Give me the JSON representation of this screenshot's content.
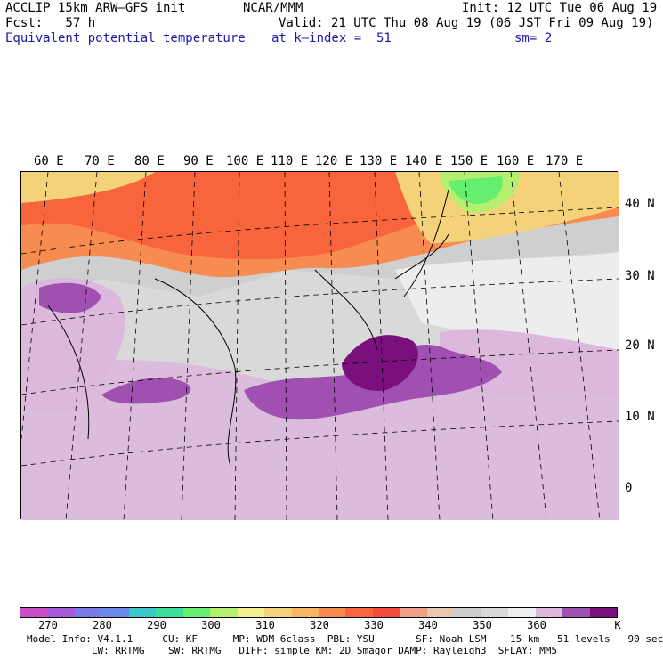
{
  "header": {
    "model": "ACCLIP 15km ARW–GFS init",
    "center": "NCAR/MMM",
    "init": "Init: 12 UTC Tue 06 Aug 19",
    "fcst": "Fcst:   57 h",
    "valid": "Valid: 21 UTC Thu 08 Aug 19 (06 JST Fri 09 Aug 19)",
    "field": "Equivalent potential temperature",
    "level": "at k–index =  51",
    "smooth": "sm= 2"
  },
  "map": {
    "lon_labels": [
      "60 E",
      "70 E",
      "80 E",
      "90 E",
      "100 E",
      "110 E",
      "120 E",
      "130 E",
      "140 E",
      "150 E",
      "160 E",
      "170 E"
    ],
    "lat_labels": [
      "40 N",
      "30 N",
      "20 N",
      "10 N",
      "0"
    ]
  },
  "colorbar": {
    "colors": [
      "#c84fc8",
      "#a45ad8",
      "#7a7ae8",
      "#6a88ea",
      "#3cc8c8",
      "#3ce09a",
      "#66ee6e",
      "#b4f06e",
      "#f0f08c",
      "#f4d27a",
      "#f8b464",
      "#f88c50",
      "#f8643c",
      "#f44c3a",
      "#f0a08a",
      "#e6c8b0",
      "#cccccc",
      "#d9d9d9",
      "#efefef",
      "#dcb8dc",
      "#a050b0",
      "#7a107e"
    ],
    "ticks": [
      "270",
      "280",
      "290",
      "300",
      "310",
      "320",
      "330",
      "340",
      "350",
      "360"
    ],
    "unit": "K"
  },
  "footer": {
    "line1": "Model Info: V4.1.1     CU: KF      MP: WDM 6class  PBL: YSU       SF: Noah LSM    15 km   51 levels   90 sec",
    "line2": "           LW: RRTMG    SW: RRTMG   DIFF: simple KM: 2D Smagor DAMP: Rayleigh3  SFLAY: MM5"
  }
}
